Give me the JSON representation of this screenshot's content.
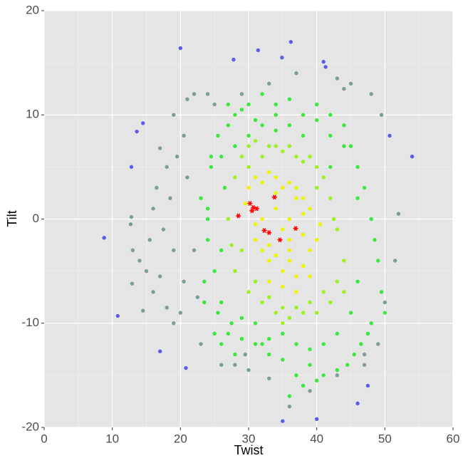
{
  "chart_data": {
    "type": "scatter",
    "x_label": "Twist",
    "y_label": "Tilt",
    "xlim": [
      0,
      60
    ],
    "ylim": [
      -20,
      20
    ],
    "xticks": [
      0,
      10,
      20,
      30,
      40,
      50,
      60
    ],
    "yticks": [
      -20,
      -10,
      0,
      10,
      20
    ],
    "grid": true,
    "series": [
      {
        "color": "#7d9c9c",
        "marker": "circle",
        "x": [
          12.8,
          12.7,
          13,
          12.9,
          14,
          15,
          16,
          15.5,
          16.5,
          17,
          18,
          18.5,
          19,
          19,
          20,
          18,
          21,
          22,
          24,
          26,
          28,
          33,
          38,
          43,
          47,
          49,
          48,
          45,
          37,
          33,
          29,
          19,
          17,
          14.5,
          52,
          51.5,
          50,
          20.5,
          22,
          21,
          23,
          43,
          36,
          29.5,
          25,
          16,
          17.5,
          19.5,
          20.5,
          22.5,
          47,
          49.5,
          30,
          39,
          44
        ],
        "values": [
          0.2,
          -0.5,
          -3,
          -6.2,
          -4,
          -5,
          -7,
          -2,
          3,
          6.8,
          5,
          2,
          -3,
          -10,
          -9,
          -8.5,
          11.5,
          12,
          12,
          -14,
          -14,
          -15.3,
          -16,
          -15,
          -14,
          -12,
          12,
          13,
          14,
          13,
          12,
          10,
          -5.5,
          -8.8,
          0.5,
          -4,
          -8,
          -6,
          -3,
          4,
          -12,
          13.5,
          -18,
          -13,
          11,
          1,
          -1,
          6,
          8,
          -7.5,
          -13,
          10,
          -14.5,
          -16.5,
          12.5
        ]
      },
      {
        "color": "#5c5ce8",
        "marker": "circle",
        "x": [
          20,
          54,
          46,
          35,
          40,
          10.8,
          8.8,
          36.2,
          31.4,
          34.9,
          27.8,
          41,
          41.3,
          13.6,
          12.8,
          14.5,
          50.7,
          20.8,
          17,
          47.5
        ],
        "values": [
          16.4,
          6,
          -17.7,
          -19.4,
          -19.2,
          -9.3,
          -1.8,
          17,
          16.2,
          15.5,
          15.3,
          15.1,
          14.6,
          8.4,
          5,
          9.2,
          8,
          -14.3,
          -12.7,
          -16
        ]
      },
      {
        "color": "#3ce83c",
        "marker": "circle",
        "x": [
          23,
          24,
          24.5,
          25,
          25.5,
          26,
          26.5,
          27,
          27.5,
          28,
          23.5,
          24,
          25,
          26,
          27,
          28,
          29,
          30,
          31,
          32,
          34,
          36,
          38,
          40,
          42,
          44,
          45,
          46,
          47,
          48,
          48.5,
          49,
          49.5,
          50,
          47.5,
          46.5,
          45.5,
          44.5,
          43,
          41,
          39,
          37,
          35,
          33,
          31,
          29,
          27,
          25.5,
          24.5,
          23.5,
          30,
          32,
          34,
          36,
          38,
          40,
          42,
          44,
          46,
          28,
          26,
          24,
          45,
          43,
          41,
          39,
          37,
          35,
          33,
          31,
          29,
          36,
          38,
          40,
          34,
          32,
          46,
          48,
          26,
          42
        ],
        "values": [
          2,
          -2,
          5,
          -5,
          8,
          -8,
          3,
          9,
          -10,
          10,
          -6,
          0,
          -11,
          -12,
          11,
          -13,
          10.5,
          11,
          9.5,
          12,
          11,
          11.5,
          10,
          11,
          10,
          9,
          7,
          5,
          3,
          0,
          -2,
          -4,
          -7,
          -9,
          -11,
          -12,
          -13,
          -14,
          -14.5,
          -15,
          -14,
          -15,
          -13.5,
          -13,
          -12,
          -11.5,
          -11,
          -9,
          6,
          -8,
          8,
          9,
          8.5,
          9,
          8,
          9.5,
          8,
          7,
          2,
          7,
          6,
          1,
          -9,
          -11,
          -12,
          -12.5,
          -12,
          -11,
          -11.5,
          -10,
          -9.5,
          -17,
          -16,
          -15.5,
          10,
          -12,
          -6,
          -10,
          -3,
          5
        ]
      },
      {
        "color": "#9cf21e",
        "marker": "circle",
        "x": [
          27,
          28,
          29,
          30,
          31,
          32,
          33,
          34,
          35,
          36,
          37,
          38,
          39,
          40,
          41,
          42,
          43,
          44,
          28,
          30,
          32,
          34,
          36,
          38,
          40,
          42,
          44,
          29,
          31,
          33,
          35,
          37,
          39,
          41,
          43,
          27.5,
          42.5,
          30,
          40,
          35
        ],
        "values": [
          0,
          4,
          6,
          7,
          7.5,
          6,
          7,
          7,
          6.5,
          7,
          6,
          5.5,
          6,
          5,
          4,
          2,
          -1,
          -4,
          -5,
          -7,
          -8,
          -9,
          -9.5,
          -9,
          -9,
          -8,
          -7,
          -3,
          -6,
          -7.5,
          -8.5,
          -8.5,
          -8,
          -7,
          -6,
          -2.5,
          0,
          5,
          3,
          -10
        ]
      },
      {
        "color": "#eef500",
        "marker": "circle",
        "x": [
          30,
          31,
          32,
          33,
          34,
          35,
          36,
          37,
          38,
          39,
          31,
          32,
          33,
          34,
          35,
          36,
          37,
          38,
          39,
          40,
          32,
          34,
          36,
          38,
          33,
          35,
          37,
          39,
          34,
          36,
          38,
          31,
          29.5,
          40.5,
          35,
          37,
          33,
          36
        ],
        "values": [
          3,
          4,
          3.5,
          4.5,
          4,
          3,
          3.5,
          3,
          2,
          1,
          -2,
          -3,
          -4,
          -3.5,
          -5,
          -4,
          -5.5,
          -4.5,
          -3,
          -2,
          0,
          1,
          0,
          0.5,
          -6,
          -6.5,
          -7,
          -5.5,
          2.5,
          -2,
          -1.5,
          -0.5,
          1.5,
          -0.5,
          -1,
          2,
          -2.5,
          -3
        ]
      },
      {
        "color": "#ff0000",
        "marker": "asterisk",
        "x": [
          28.5,
          30.2,
          30.5,
          30.7,
          31.2,
          33.8,
          32.3,
          33,
          34.6,
          36.9
        ],
        "values": [
          0.3,
          1.5,
          0.8,
          1.1,
          1,
          2.1,
          -1.1,
          -1.3,
          -2,
          -0.9
        ]
      }
    ]
  }
}
